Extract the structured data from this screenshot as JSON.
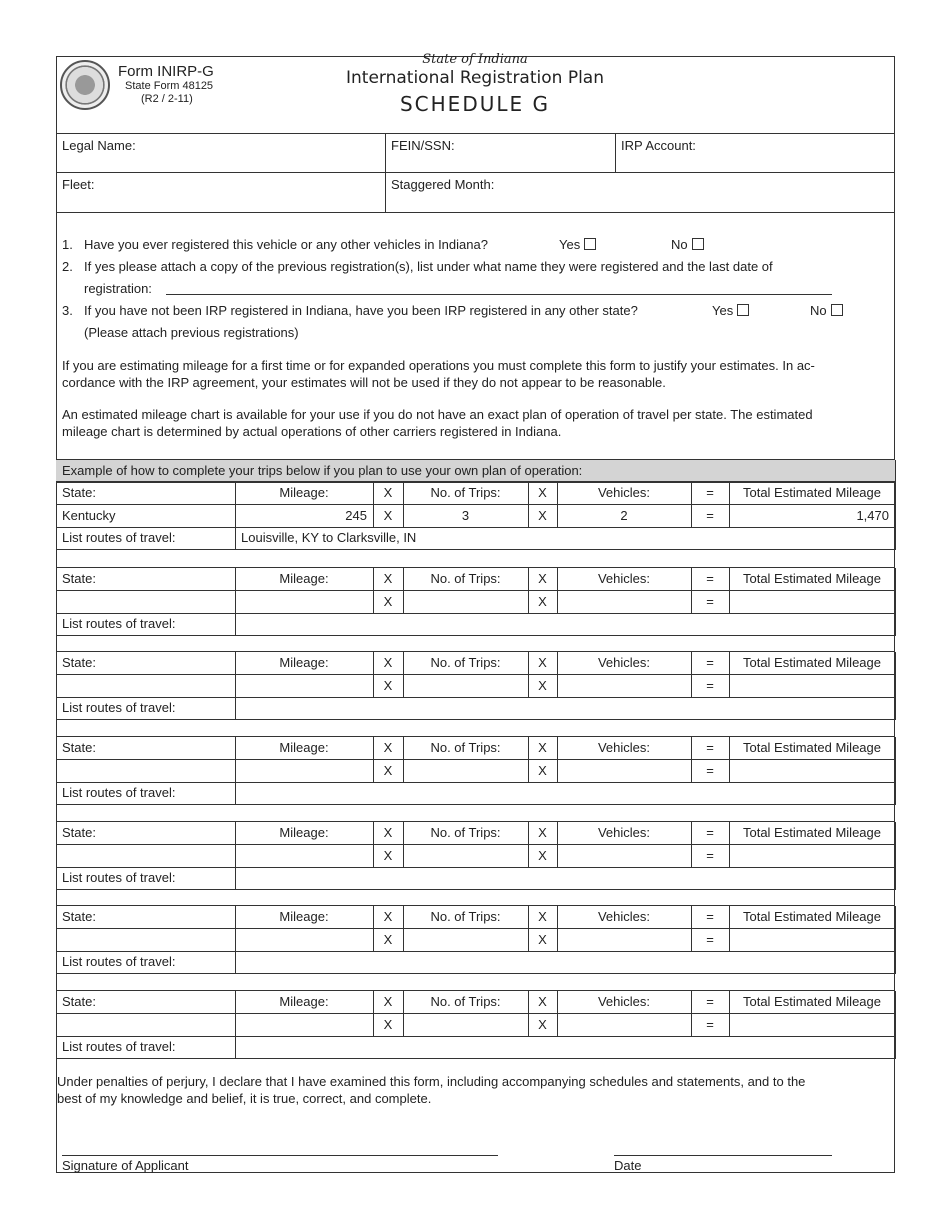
{
  "header": {
    "seal_text": "SEAL OF THE STATE OF INDIANA 1816",
    "form_id": "Form INIRP-G",
    "state_form": "State Form 48125",
    "revision": "(R2 / 2-11)",
    "state": "State of Indiana",
    "title": "International Registration Plan",
    "schedule": "SCHEDULE G"
  },
  "fields": {
    "legal_name": "Legal Name:",
    "fein": "FEIN/SSN:",
    "irp_account": "IRP Account:",
    "fleet": "Fleet:",
    "staggered_month": "Staggered Month:"
  },
  "questions": {
    "q1_num": "1.",
    "q1": "Have you ever registered this vehicle or any other vehicles in Indiana?",
    "q2_num": "2.",
    "q2": "If yes please attach a copy of the previous registration(s), list under what name they were registered and the last date of",
    "q2b": "registration:",
    "q3_num": "3.",
    "q3": "If you have not been IRP registered in Indiana, have you been IRP registered in any other state?",
    "q3b": "(Please attach previous registrations)",
    "yes": "Yes",
    "no": "No"
  },
  "paragraphs": {
    "p1a": "If you are estimating mileage for a first time or for expanded operations you must complete this form to justify your estimates. In ac-",
    "p1b": "cordance with the IRP agreement, your estimates will not be used if they do not appear to be reasonable.",
    "p2a": "An estimated mileage chart is available for your use if you do not have an exact plan of operation of travel per state. The estimated",
    "p2b": "mileage chart is determined by actual operations of other carriers registered in Indiana."
  },
  "table": {
    "example_title": "Example of how to complete your trips below if you plan to use your own plan of operation:",
    "headers": [
      "State:",
      "Mileage:",
      "X",
      "No. of Trips:",
      "X",
      "Vehicles:",
      "=",
      "Total Estimated Mileage"
    ],
    "routes_label": "List routes of travel:",
    "example": {
      "state": "Kentucky",
      "mileage": "245",
      "x1": "X",
      "trips": "3",
      "x2": "X",
      "vehicles": "2",
      "eq": "=",
      "total": "1,470",
      "routes": "Louisville, KY to Clarksville, IN"
    },
    "blank_ops": {
      "x1": "X",
      "x2": "X",
      "eq": "="
    }
  },
  "footer": {
    "perjury_a": "Under penalties of perjury, I declare that I have examined this form, including accompanying schedules and statements, and to the",
    "perjury_b": "best of my knowledge and belief, it is true, correct, and complete.",
    "signature_label": "Signature of Applicant",
    "date_label": "Date"
  }
}
